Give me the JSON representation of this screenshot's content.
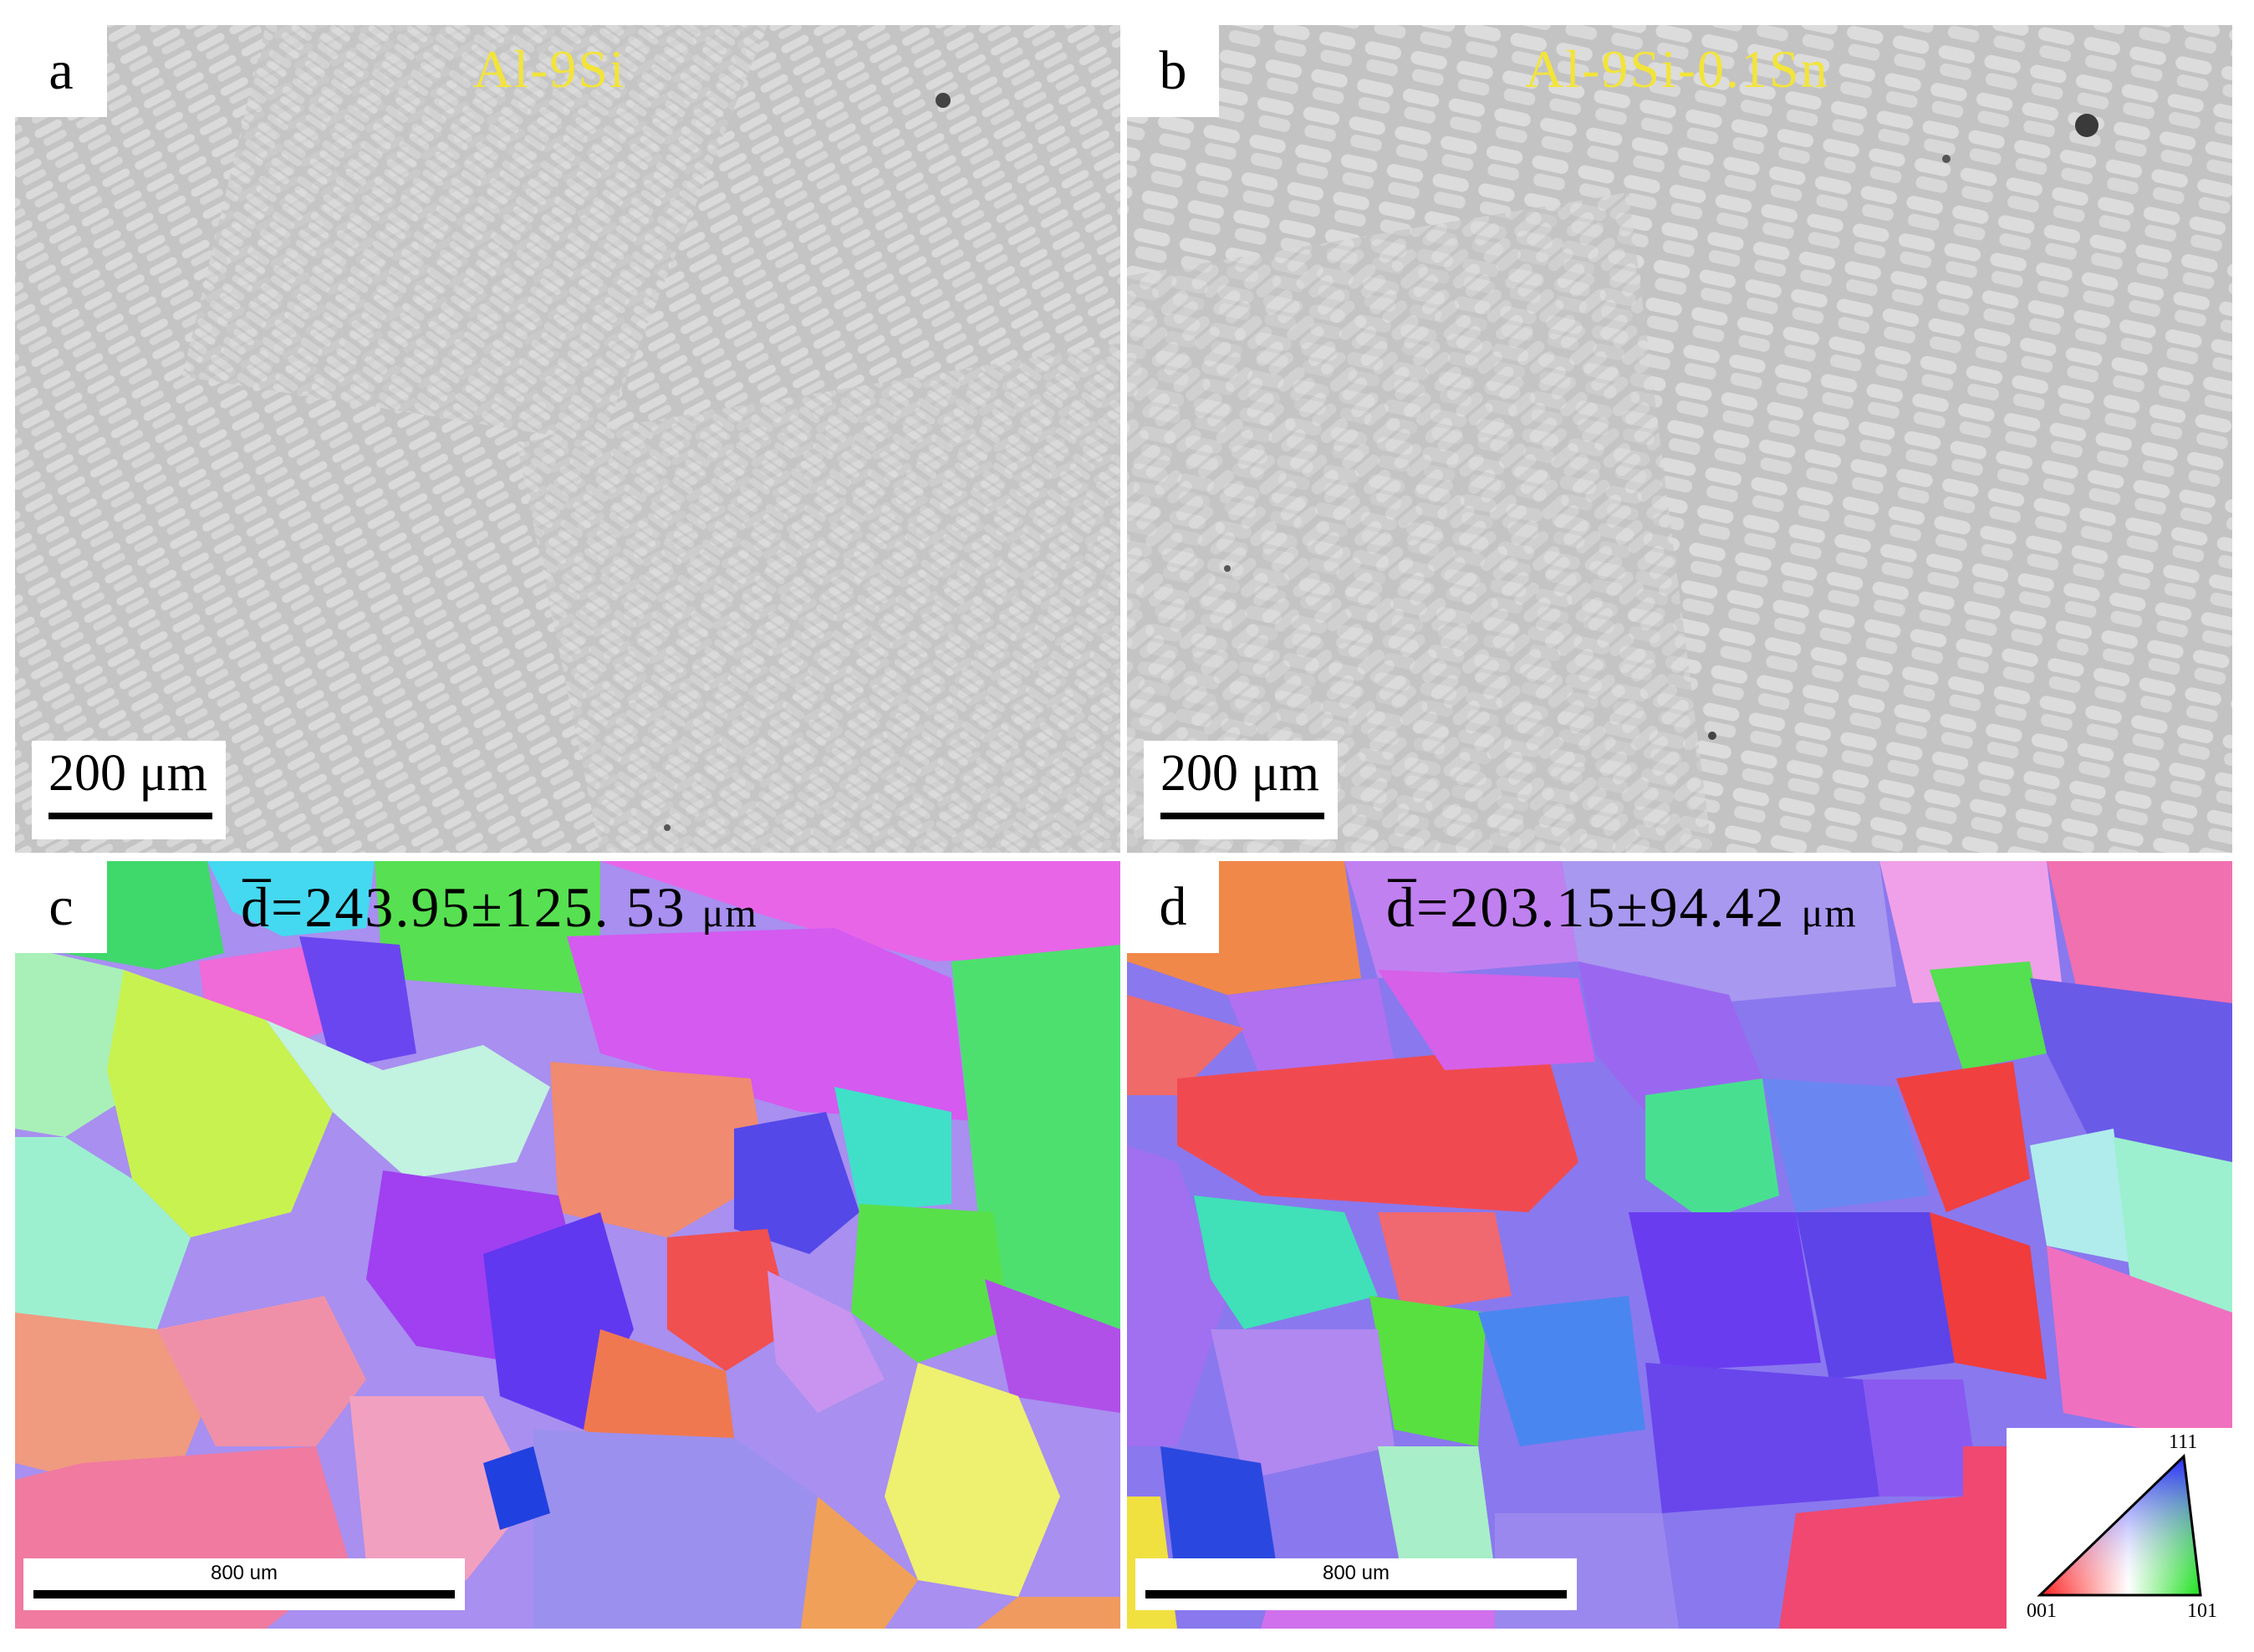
{
  "panels": {
    "a": {
      "letter": "a",
      "caption": "Al-9Si",
      "scale_label": "200 μm"
    },
    "b": {
      "letter": "b",
      "caption": "Al-9Si-0.1Sn",
      "scale_label": "200 μm"
    },
    "c": {
      "letter": "c",
      "grain_size_symbol": "d̅",
      "grain_size_value": "=243.95±125. 53 ",
      "grain_size_unit": "μm",
      "scale_label": "800 um"
    },
    "d": {
      "letter": "d",
      "grain_size_symbol": "d̅",
      "grain_size_value": "=203.15±94.42 ",
      "grain_size_unit": "μm",
      "scale_label": "800 um"
    }
  },
  "legend": {
    "top": "111",
    "left": "001",
    "right": "101"
  },
  "colors": {
    "om_background": "#c6c6c6",
    "om_dendrite": "#d9d9d9",
    "caption_yellow": "#f3e43a"
  }
}
